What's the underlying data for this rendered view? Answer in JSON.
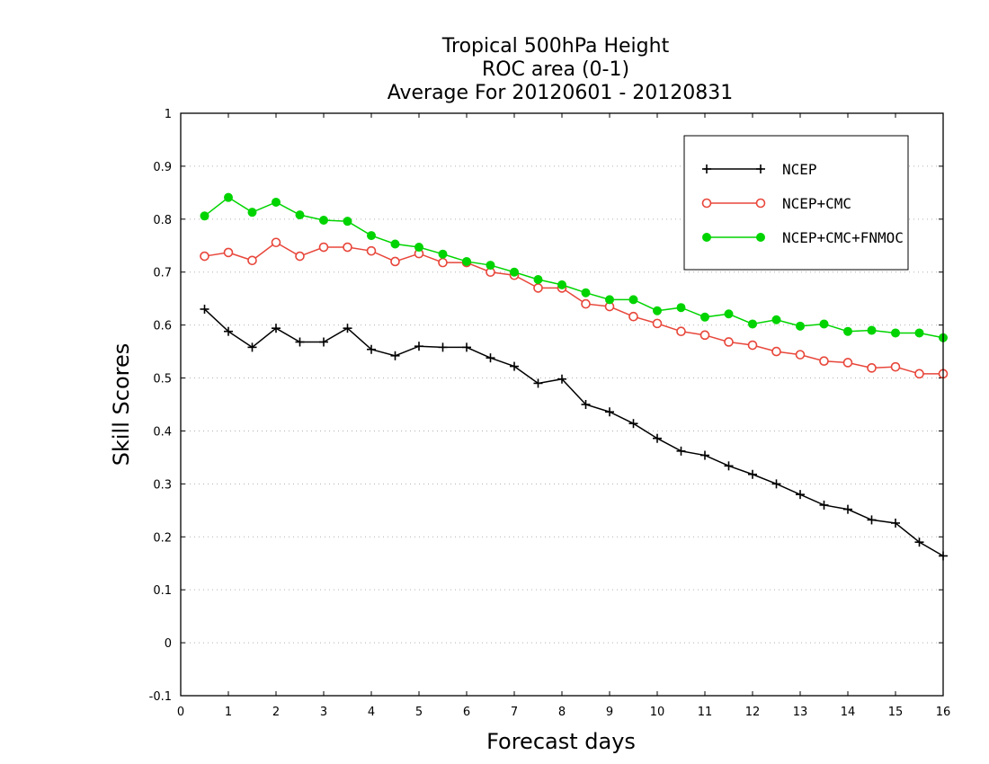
{
  "chart_data": {
    "type": "line",
    "title": [
      "Tropical 500hPa Height",
      "ROC area (0-1)",
      "Average For 20120601 - 20120831"
    ],
    "xlabel": "Forecast days",
    "ylabel": "Skill Scores",
    "xlim": [
      0,
      16
    ],
    "ylim": [
      -0.1,
      1
    ],
    "xticks": [
      0,
      1,
      2,
      3,
      4,
      5,
      6,
      7,
      8,
      9,
      10,
      11,
      12,
      13,
      14,
      15,
      16
    ],
    "xtick_labels": [
      "0",
      "1",
      "2",
      "3",
      "4",
      "5",
      "6",
      "7",
      "8",
      "9",
      "10",
      "11",
      "12",
      "13",
      "14",
      "15",
      "16"
    ],
    "yticks": [
      -0.1,
      0,
      0.1,
      0.2,
      0.3,
      0.4,
      0.5,
      0.6,
      0.7,
      0.8,
      0.9,
      1
    ],
    "ytick_labels": [
      "-0.1",
      "0",
      "0.1",
      "0.2",
      "0.3",
      "0.4",
      "0.5",
      "0.6",
      "0.7",
      "0.8",
      "0.9",
      "1"
    ],
    "grid": "dotted horizontal",
    "legend": "top-right",
    "x": [
      0.5,
      1,
      1.5,
      2,
      2.5,
      3,
      3.5,
      4,
      4.5,
      5,
      5.5,
      6,
      6.5,
      7,
      7.5,
      8,
      8.5,
      9,
      9.5,
      10,
      10.5,
      11,
      11.5,
      12,
      12.5,
      13,
      13.5,
      14,
      14.5,
      15,
      15.5,
      16
    ],
    "series": [
      {
        "name": "NCEP",
        "color": "#000000",
        "marker": "plus",
        "values": [
          0.63,
          0.588,
          0.558,
          0.594,
          0.568,
          0.568,
          0.594,
          0.554,
          0.542,
          0.56,
          0.558,
          0.558,
          0.538,
          0.522,
          0.49,
          0.498,
          0.45,
          0.436,
          0.414,
          0.386,
          0.362,
          0.354,
          0.334,
          0.318,
          0.3,
          0.28,
          0.26,
          0.252,
          0.232,
          0.226,
          0.19,
          0.164
        ]
      },
      {
        "name": "NCEP+CMC",
        "color": "#e8463a",
        "marker": "open-circle",
        "values": [
          0.73,
          0.737,
          0.722,
          0.756,
          0.73,
          0.747,
          0.747,
          0.74,
          0.72,
          0.735,
          0.718,
          0.718,
          0.7,
          0.694,
          0.67,
          0.67,
          0.64,
          0.635,
          0.616,
          0.603,
          0.588,
          0.581,
          0.568,
          0.562,
          0.55,
          0.544,
          0.532,
          0.529,
          0.519,
          0.521,
          0.508,
          0.508
        ]
      },
      {
        "name": "NCEP+CMC+FNMOC",
        "color": "#00d400",
        "marker": "filled-circle",
        "values": [
          0.806,
          0.841,
          0.813,
          0.832,
          0.808,
          0.798,
          0.796,
          0.769,
          0.753,
          0.747,
          0.734,
          0.72,
          0.713,
          0.7,
          0.686,
          0.676,
          0.661,
          0.648,
          0.648,
          0.627,
          0.633,
          0.615,
          0.621,
          0.602,
          0.61,
          0.598,
          0.602,
          0.588,
          0.59,
          0.585,
          0.585,
          0.576
        ]
      }
    ]
  }
}
